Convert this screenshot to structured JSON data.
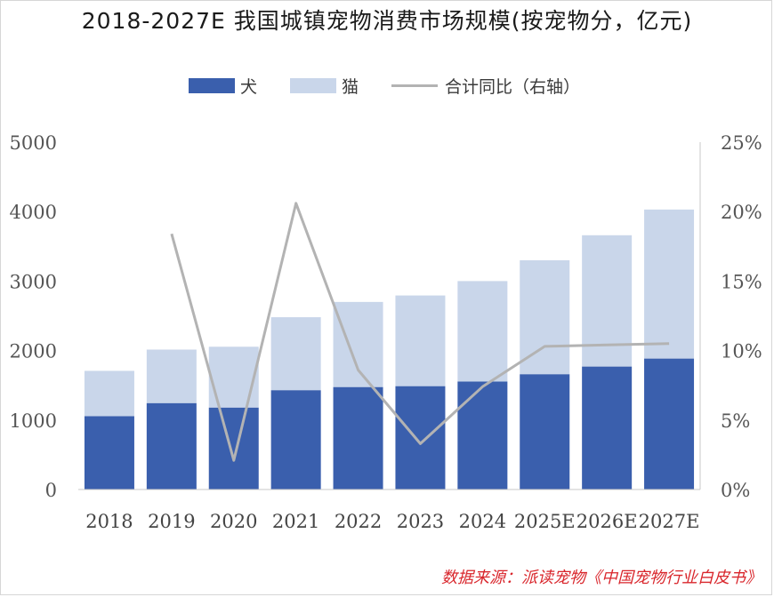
{
  "chart_data": {
    "type": "bar",
    "title": "2018-2027E 我国城镇宠物消费市场规模(按宠物分，亿元)",
    "categories": [
      "2018",
      "2019",
      "2020",
      "2021",
      "2022",
      "2023",
      "2024",
      "2025E",
      "2026E",
      "2027E"
    ],
    "series": [
      {
        "name": "犬",
        "kind": "stacked-bar",
        "values": [
          1056,
          1244,
          1180,
          1430,
          1475,
          1488,
          1555,
          1660,
          1770,
          1885
        ],
        "color": "#3a5fad"
      },
      {
        "name": "猫",
        "kind": "stacked-bar",
        "values": [
          652,
          770,
          875,
          1050,
          1225,
          1305,
          1445,
          1640,
          1890,
          2145
        ],
        "color": "#c9d6ea"
      },
      {
        "name": "合计同比（右轴）",
        "kind": "line",
        "axis": "right",
        "values": [
          null,
          0.184,
          0.021,
          0.206,
          0.086,
          0.033,
          0.074,
          0.103,
          0.104,
          0.105
        ],
        "color": "#b3b3b3"
      }
    ],
    "ylim": [
      0,
      5000
    ],
    "yticks": [
      "0",
      "1000",
      "2000",
      "3000",
      "4000",
      "5000"
    ],
    "y2lim": [
      0,
      0.25
    ],
    "y2ticks": [
      "0%",
      "5%",
      "10%",
      "15%",
      "20%",
      "25%"
    ],
    "legend_position": "top",
    "grid": false
  },
  "source": "数据来源：派读宠物《中国宠物行业白皮书》"
}
